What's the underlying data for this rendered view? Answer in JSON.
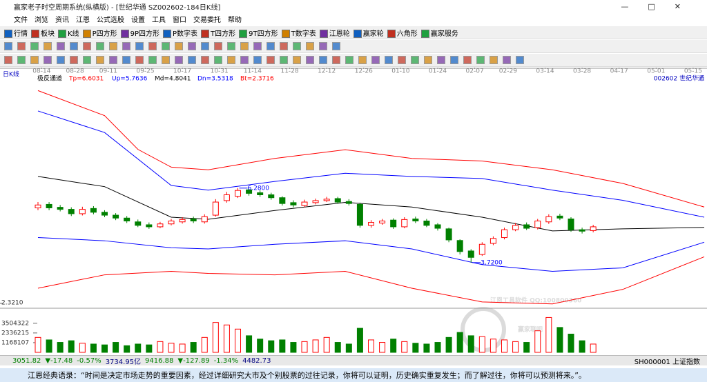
{
  "window": {
    "title": "赢家老子时空周期系统(纵横版) - [世纪华通 SZ002602-184日K线]",
    "menu": [
      "文件",
      "浏览",
      "资讯",
      "江恩",
      "公式选股",
      "设置",
      "工具",
      "窗口",
      "交易委托",
      "帮助"
    ],
    "toolbar": [
      "行情",
      "板块",
      "K线",
      "P四方形",
      "9P四方形",
      "P数字表",
      "T四方形",
      "9T四方形",
      "T数字表",
      "江恩轮",
      "赢家轮",
      "六角形",
      "赢家服务"
    ],
    "status": [
      {
        "text": "3051.82",
        "color": "#008000"
      },
      {
        "text": "▼-17.48",
        "color": "#008000"
      },
      {
        "text": "-0.57%",
        "color": "#008000"
      },
      {
        "text": "3734.95亿",
        "color": "#000080"
      },
      {
        "text": "9416.88",
        "color": "#008000"
      },
      {
        "text": "▼-127.89",
        "color": "#008000"
      },
      {
        "text": "-1.34%",
        "color": "#008000"
      },
      {
        "text": "4482.73",
        "color": "#000080"
      }
    ],
    "status_right": "SH000001 上证指数",
    "quote": "江恩经典语录：“时间是决定市场走势的重要因素，经过详细研究大市及个别股票的过往记录，你将可以证明，历史确实重复发生；而了解过往，你将可以预测将来。”。",
    "watermark": [
      "江恩工具软件  QQ:100800360",
      "赢家聊吧"
    ]
  },
  "chart_data": {
    "type": "candlestick",
    "period_label": "日K线",
    "indicator": "极反通道",
    "indicator_values": [
      {
        "text": "Tp=6.6031",
        "color": "#ff0000"
      },
      {
        "text": "Up=5.7636",
        "color": "#0000ff"
      },
      {
        "text": "Md=4.8041",
        "color": "#000000"
      },
      {
        "text": "Dn=3.5318",
        "color": "#0000ff"
      },
      {
        "text": "Bt=2.3716",
        "color": "#ff0000"
      }
    ],
    "symbol": "002602 世纪华通",
    "xlim": [
      0,
      180
    ],
    "xticks": [
      {
        "value": 1,
        "label": "08-14"
      },
      {
        "value": 10,
        "label": "08-28"
      },
      {
        "value": 19,
        "label": "09-11"
      },
      {
        "value": 29,
        "label": "09-25"
      },
      {
        "value": 39,
        "label": "10-17"
      },
      {
        "value": 49,
        "label": "10-31"
      },
      {
        "value": 58,
        "label": "11-14"
      },
      {
        "value": 68,
        "label": "11-28"
      },
      {
        "value": 78,
        "label": "12-12"
      },
      {
        "value": 88,
        "label": "12-26"
      },
      {
        "value": 98,
        "label": "01-10"
      },
      {
        "value": 108,
        "label": "01-24"
      },
      {
        "value": 118,
        "label": "02-07"
      },
      {
        "value": 127,
        "label": "02-29"
      },
      {
        "value": 137,
        "label": "03-14"
      },
      {
        "value": 147,
        "label": "03-28"
      },
      {
        "value": 157,
        "label": "04-17"
      },
      {
        "value": 167,
        "label": "05-01"
      },
      {
        "value": 177,
        "label": "05-15"
      }
    ],
    "ylim": [
      2.2,
      9.9
    ],
    "yticks": [
      {
        "value": 2.321,
        "label": "2.3210"
      }
    ],
    "up_color": "#ff0000",
    "down_color": "#008000",
    "x": [
      0,
      3,
      6,
      9,
      12,
      15,
      18,
      21,
      24,
      27,
      30,
      33,
      36,
      39,
      42,
      45,
      48,
      51,
      54,
      57,
      60,
      63,
      66,
      69,
      72,
      75,
      78,
      81,
      84,
      87,
      90,
      93,
      96,
      99,
      102,
      105,
      108,
      111,
      114,
      117,
      120,
      123,
      126,
      129,
      132,
      135,
      138,
      141,
      144,
      147,
      150
    ],
    "open": [
      5.6,
      5.72,
      5.62,
      5.55,
      5.4,
      5.58,
      5.45,
      5.35,
      5.25,
      5.12,
      5.02,
      4.95,
      5.05,
      5.12,
      5.22,
      5.12,
      5.35,
      5.85,
      6.0,
      6.22,
      6.12,
      6.05,
      5.95,
      5.78,
      5.68,
      5.78,
      5.85,
      5.92,
      5.82,
      5.72,
      5.0,
      5.08,
      5.18,
      4.95,
      5.22,
      5.15,
      5.02,
      4.88,
      4.48,
      4.12,
      4.0,
      4.38,
      4.58,
      4.85,
      5.02,
      4.92,
      5.12,
      5.32,
      5.22,
      4.85,
      4.82
    ],
    "close": [
      5.7,
      5.6,
      5.55,
      5.4,
      5.55,
      5.45,
      5.35,
      5.25,
      5.15,
      5.0,
      4.95,
      5.05,
      5.15,
      5.2,
      5.15,
      5.3,
      5.8,
      6.05,
      6.2,
      6.1,
      6.05,
      5.95,
      5.75,
      5.7,
      5.8,
      5.85,
      5.9,
      5.8,
      5.75,
      5.0,
      5.1,
      5.15,
      4.95,
      5.2,
      5.15,
      5.0,
      4.9,
      4.5,
      4.1,
      3.9,
      4.35,
      4.55,
      4.85,
      5.0,
      4.9,
      5.15,
      5.3,
      5.25,
      4.85,
      4.8,
      4.95
    ],
    "high": [
      5.8,
      5.8,
      5.7,
      5.62,
      5.64,
      5.66,
      5.52,
      5.42,
      5.32,
      5.2,
      5.1,
      5.12,
      5.22,
      5.28,
      5.3,
      5.38,
      5.9,
      6.15,
      6.28,
      6.26,
      6.2,
      6.12,
      6.0,
      5.86,
      5.88,
      5.92,
      5.98,
      5.98,
      5.9,
      5.78,
      5.18,
      5.22,
      5.24,
      5.28,
      5.3,
      5.22,
      5.08,
      4.92,
      4.52,
      4.18,
      4.42,
      4.62,
      4.92,
      5.08,
      5.1,
      5.22,
      5.38,
      5.4,
      5.28,
      4.92,
      5.02
    ],
    "low": [
      5.52,
      5.52,
      5.48,
      5.32,
      5.34,
      5.38,
      5.28,
      5.18,
      5.08,
      4.94,
      4.88,
      4.9,
      5.0,
      5.06,
      5.08,
      5.06,
      5.3,
      5.78,
      5.94,
      6.02,
      5.98,
      5.88,
      5.68,
      5.62,
      5.62,
      5.72,
      5.8,
      5.74,
      5.68,
      4.92,
      4.92,
      5.02,
      4.88,
      4.9,
      5.08,
      4.94,
      4.82,
      4.42,
      4.0,
      3.72,
      3.95,
      4.32,
      4.52,
      4.8,
      4.84,
      4.86,
      5.05,
      5.18,
      4.78,
      4.72,
      4.76
    ],
    "bands": [
      {
        "color": "#ff0000",
        "x": [
          0,
          18,
          27,
          36,
          46,
          64,
          83,
          101,
          120,
          139,
          158,
          180
        ],
        "values": [
          9.63,
          8.77,
          7.61,
          7.0,
          6.91,
          7.3,
          7.6,
          7.3,
          7.21,
          6.91,
          6.44,
          5.63
        ]
      },
      {
        "color": "#0000ff",
        "x": [
          0,
          18,
          36,
          46,
          64,
          83,
          101,
          120,
          139,
          158,
          180
        ],
        "values": [
          8.93,
          8.19,
          6.37,
          6.21,
          6.51,
          6.79,
          6.68,
          6.61,
          6.21,
          5.86,
          5.28
        ]
      },
      {
        "color": "#000000",
        "x": [
          0,
          18,
          36,
          46,
          64,
          83,
          101,
          120,
          139,
          158,
          180
        ],
        "values": [
          6.68,
          6.33,
          5.28,
          5.21,
          5.51,
          5.79,
          5.63,
          5.28,
          4.81,
          4.88,
          4.93
        ]
      },
      {
        "color": "#0000ff",
        "x": [
          0,
          18,
          36,
          46,
          64,
          83,
          101,
          120,
          139,
          158,
          180
        ],
        "values": [
          4.58,
          4.47,
          4.23,
          4.19,
          4.35,
          4.47,
          4.19,
          3.65,
          3.42,
          3.54,
          4.42
        ]
      },
      {
        "color": "#ff0000",
        "x": [
          0,
          18,
          36,
          46,
          64,
          83,
          101,
          120,
          139,
          158,
          180
        ],
        "values": [
          2.84,
          3.3,
          3.42,
          3.35,
          3.3,
          3.42,
          2.84,
          2.37,
          2.3,
          2.8,
          3.92
        ]
      }
    ],
    "annotations": [
      {
        "text": "6.2800",
        "candle": 18,
        "value": 6.28
      },
      {
        "text": "3.7200",
        "candle": 39,
        "value": 3.72
      }
    ],
    "volume": {
      "ylim": [
        0,
        4900000
      ],
      "yticks": [
        1168107,
        2336215,
        3504322
      ],
      "values": [
        1800000,
        1500000,
        1200000,
        1400000,
        1100000,
        1000000,
        900000,
        1200000,
        800000,
        1000000,
        900000,
        1300000,
        1100000,
        1000000,
        1200000,
        1800000,
        3600000,
        3300000,
        2800000,
        2000000,
        1600000,
        1400000,
        1500000,
        1200000,
        1300000,
        1500000,
        1800000,
        1200000,
        1000000,
        2900000,
        1500000,
        1200000,
        1600000,
        1300000,
        1100000,
        1000000,
        1200000,
        1800000,
        2400000,
        2000000,
        1900000,
        1600000,
        1500000,
        1300000,
        1200000,
        2600000,
        4200000,
        3000000,
        2200000,
        1400000,
        1000000
      ]
    }
  }
}
